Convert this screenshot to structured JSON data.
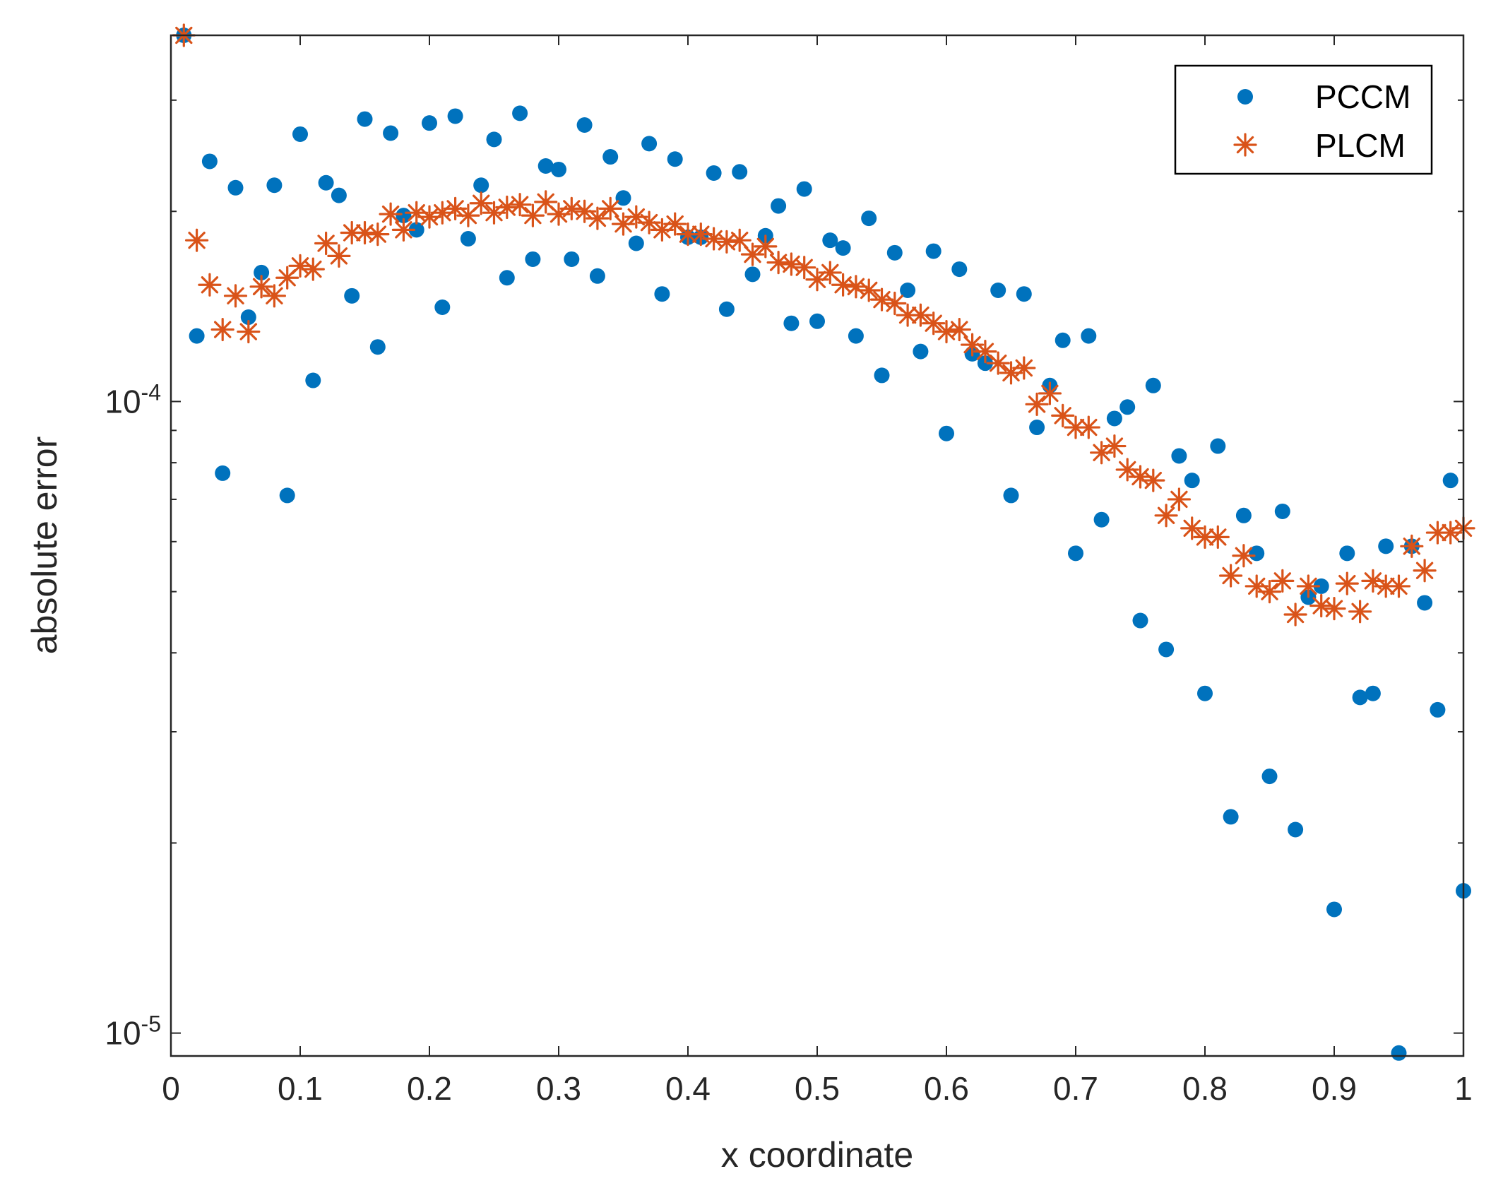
{
  "colors": {
    "pccm": "#0072BD",
    "plcm": "#D95319",
    "axis": "#262626",
    "background": "#ffffff"
  },
  "chart_data": {
    "type": "scatter",
    "title": "",
    "xlabel": "x coordinate",
    "ylabel": "absolute error",
    "xlim": [
      0,
      1
    ],
    "ylim": [
      9.2e-06,
      0.00038
    ],
    "yscale": "log",
    "grid": false,
    "legend_position": "top-right",
    "x_ticks": [
      0,
      0.1,
      0.2,
      0.3,
      0.4,
      0.5,
      0.6,
      0.7,
      0.8,
      0.9,
      1
    ],
    "x_tick_labels": [
      "0",
      "0.1",
      "0.2",
      "0.3",
      "0.4",
      "0.5",
      "0.6",
      "0.7",
      "0.8",
      "0.9",
      "1"
    ],
    "y_major_ticks": [
      {
        "value": 1e-05,
        "base": "10",
        "exp": "-5"
      },
      {
        "value": 0.0001,
        "base": "10",
        "exp": "-4"
      }
    ],
    "y_minor_ticks": [
      2e-05,
      3e-05,
      4e-05,
      5e-05,
      6e-05,
      7e-05,
      8e-05,
      9e-05,
      0.0002,
      0.0003
    ],
    "series": [
      {
        "name": "PCCM",
        "marker": "circle",
        "color": "#0072BD",
        "x": [
          0.01,
          0.02,
          0.03,
          0.04,
          0.05,
          0.06,
          0.07,
          0.08,
          0.09,
          0.1,
          0.11,
          0.12,
          0.13,
          0.14,
          0.15,
          0.16,
          0.17,
          0.18,
          0.19,
          0.2,
          0.21,
          0.22,
          0.23,
          0.24,
          0.25,
          0.26,
          0.27,
          0.28,
          0.29,
          0.3,
          0.31,
          0.32,
          0.33,
          0.34,
          0.35,
          0.36,
          0.37,
          0.38,
          0.39,
          0.4,
          0.41,
          0.42,
          0.43,
          0.44,
          0.45,
          0.46,
          0.47,
          0.48,
          0.49,
          0.5,
          0.51,
          0.52,
          0.53,
          0.54,
          0.55,
          0.56,
          0.57,
          0.58,
          0.59,
          0.6,
          0.61,
          0.62,
          0.63,
          0.64,
          0.65,
          0.66,
          0.67,
          0.68,
          0.69,
          0.7,
          0.71,
          0.72,
          0.73,
          0.74,
          0.75,
          0.76,
          0.77,
          0.78,
          0.79,
          0.8,
          0.81,
          0.82,
          0.83,
          0.84,
          0.85,
          0.86,
          0.87,
          0.88,
          0.89,
          0.9,
          0.91,
          0.92,
          0.93,
          0.94,
          0.95,
          0.96,
          0.97,
          0.98,
          0.99,
          1.0
        ],
        "values": [
          0.00038,
          0.000127,
          0.00024,
          7.7e-05,
          0.000218,
          0.000136,
          0.00016,
          0.00022,
          7.1e-05,
          0.000265,
          0.000108,
          0.000222,
          0.000212,
          0.000147,
          0.00028,
          0.000122,
          0.000266,
          0.000197,
          0.000187,
          0.000276,
          0.000141,
          0.000283,
          0.000181,
          0.00022,
          0.00026,
          0.000157,
          0.000286,
          0.000168,
          0.000236,
          0.000233,
          0.000168,
          0.000274,
          0.000158,
          0.000244,
          0.00021,
          0.000178,
          0.000256,
          0.000148,
          0.000242,
          0.000182,
          0.000182,
          0.00023,
          0.00014,
          0.000231,
          0.000159,
          0.000183,
          0.000204,
          0.000133,
          0.000217,
          0.000134,
          0.00018,
          0.000175,
          0.000127,
          0.000195,
          0.00011,
          0.000172,
          0.00015,
          0.00012,
          0.000173,
          8.9e-05,
          0.000162,
          0.000119,
          0.000115,
          0.00015,
          7.1e-05,
          0.000148,
          9.1e-05,
          0.000106,
          0.000125,
          5.75e-05,
          0.000127,
          6.5e-05,
          9.4e-05,
          9.8e-05,
          4.5e-05,
          0.000106,
          4.05e-05,
          8.2e-05,
          7.5e-05,
          3.45e-05,
          8.5e-05,
          2.2e-05,
          6.6e-05,
          5.75e-05,
          2.55e-05,
          6.7e-05,
          2.1e-05,
          4.9e-05,
          5.1e-05,
          1.57e-05,
          5.75e-05,
          3.4e-05,
          3.45e-05,
          5.9e-05,
          9.3e-06,
          5.9e-05,
          4.8e-05,
          3.25e-05,
          7.5e-05,
          1.68e-05
        ]
      },
      {
        "name": "PLCM",
        "marker": "asterisk",
        "color": "#D95319",
        "x": [
          0.01,
          0.02,
          0.03,
          0.04,
          0.05,
          0.06,
          0.07,
          0.08,
          0.09,
          0.1,
          0.11,
          0.12,
          0.13,
          0.14,
          0.15,
          0.16,
          0.17,
          0.18,
          0.19,
          0.2,
          0.21,
          0.22,
          0.23,
          0.24,
          0.25,
          0.26,
          0.27,
          0.28,
          0.29,
          0.3,
          0.31,
          0.32,
          0.33,
          0.34,
          0.35,
          0.36,
          0.37,
          0.38,
          0.39,
          0.4,
          0.41,
          0.42,
          0.43,
          0.44,
          0.45,
          0.46,
          0.47,
          0.48,
          0.49,
          0.5,
          0.51,
          0.52,
          0.53,
          0.54,
          0.55,
          0.56,
          0.57,
          0.58,
          0.59,
          0.6,
          0.61,
          0.62,
          0.63,
          0.64,
          0.65,
          0.66,
          0.67,
          0.68,
          0.69,
          0.7,
          0.71,
          0.72,
          0.73,
          0.74,
          0.75,
          0.76,
          0.77,
          0.78,
          0.79,
          0.8,
          0.81,
          0.82,
          0.83,
          0.84,
          0.85,
          0.86,
          0.87,
          0.88,
          0.89,
          0.9,
          0.91,
          0.92,
          0.93,
          0.94,
          0.95,
          0.96,
          0.97,
          0.98,
          0.99,
          1.0
        ],
        "values": [
          0.00038,
          0.00018,
          0.000153,
          0.00013,
          0.000147,
          0.000129,
          0.000152,
          0.000147,
          0.000157,
          0.000164,
          0.000162,
          0.000178,
          0.00017,
          0.000185,
          0.000185,
          0.000184,
          0.000198,
          0.000187,
          0.000199,
          0.000196,
          0.000199,
          0.000202,
          0.000197,
          0.000206,
          0.000199,
          0.000203,
          0.000205,
          0.000197,
          0.000207,
          0.000198,
          0.000202,
          0.0002,
          0.000195,
          0.000202,
          0.000191,
          0.000196,
          0.000192,
          0.000187,
          0.000191,
          0.000184,
          0.000184,
          0.000181,
          0.000179,
          0.00018,
          0.000171,
          0.000176,
          0.000166,
          0.000165,
          0.000163,
          0.000156,
          0.00016,
          0.000153,
          0.000152,
          0.00015,
          0.000145,
          0.000143,
          0.000137,
          0.000137,
          0.000133,
          0.000129,
          0.00013,
          0.000123,
          0.00012,
          0.000115,
          0.000111,
          0.000113,
          9.9e-05,
          0.000103,
          9.5e-05,
          9.1e-05,
          9.1e-05,
          8.3e-05,
          8.5e-05,
          7.8e-05,
          7.6e-05,
          7.5e-05,
          6.6e-05,
          7e-05,
          6.3e-05,
          6.1e-05,
          6.1e-05,
          5.3e-05,
          5.7e-05,
          5.1e-05,
          5e-05,
          5.2e-05,
          4.6e-05,
          5.1e-05,
          4.75e-05,
          4.7e-05,
          5.15e-05,
          4.65e-05,
          5.2e-05,
          5.1e-05,
          5.1e-05,
          5.9e-05,
          5.4e-05,
          6.2e-05,
          6.2e-05,
          6.3e-05
        ]
      }
    ]
  }
}
